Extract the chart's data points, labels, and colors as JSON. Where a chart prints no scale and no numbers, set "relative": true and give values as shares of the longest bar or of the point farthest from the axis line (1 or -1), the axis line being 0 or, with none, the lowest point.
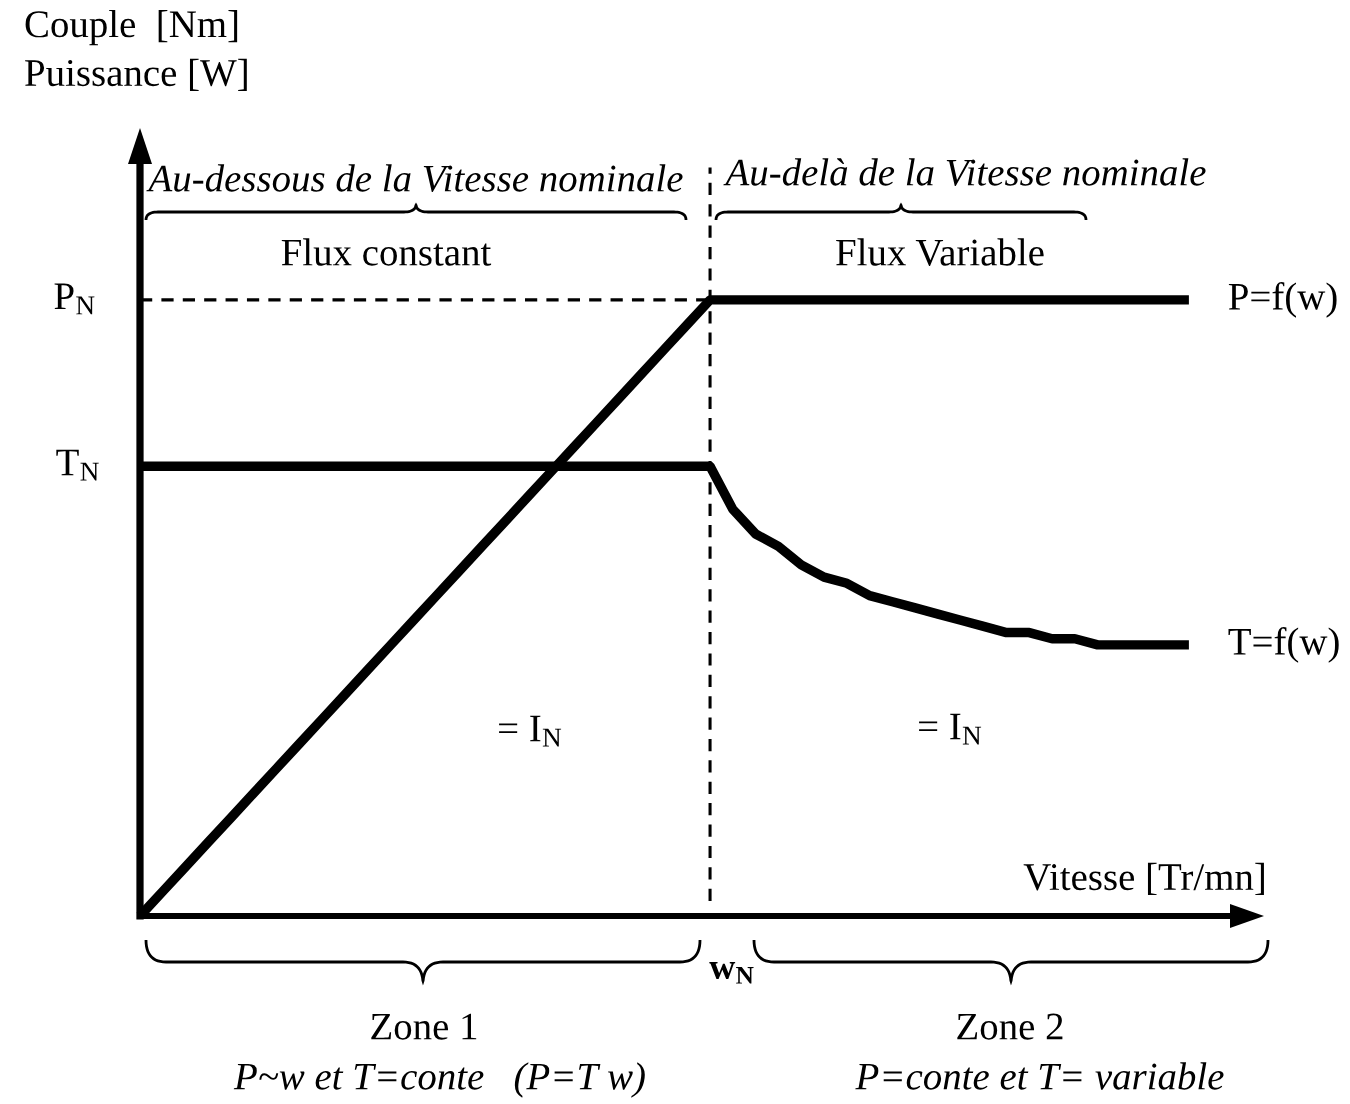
{
  "chart_data": {
    "type": "line",
    "relative": true,
    "xlabel": "Vitesse [Tr/mn]",
    "categories": [
      null,
      null,
      null,
      null,
      null,
      null,
      null,
      null,
      null,
      null,
      null,
      null,
      null,
      null,
      null,
      null,
      null,
      null,
      null,
      null,
      null,
      null,
      null,
      null,
      null,
      null,
      null,
      null,
      null,
      null,
      null,
      null,
      null,
      null,
      null,
      null,
      null,
      null,
      null,
      null,
      null,
      null,
      null,
      null,
      null,
      null,
      null
    ],
    "series": [
      {
        "name": "P=f(w)",
        "color": "#000000",
        "values": [
          0,
          0.04,
          0.08,
          0.12,
          0.16,
          0.2,
          0.24,
          0.28,
          0.32,
          0.36,
          0.4,
          0.44,
          0.48,
          0.52,
          0.56,
          0.6,
          0.64,
          0.68,
          0.72,
          0.76,
          0.8,
          0.84,
          0.88,
          0.92,
          0.96,
          1,
          1,
          1,
          1,
          1,
          1,
          1,
          1,
          1,
          1,
          1,
          1,
          1,
          1,
          1,
          1,
          1,
          1,
          1,
          1,
          1,
          1
        ]
      },
      {
        "name": "T=f(w)",
        "color": "#000000",
        "values": [
          0.73,
          0.73,
          0.73,
          0.73,
          0.73,
          0.73,
          0.73,
          0.73,
          0.73,
          0.73,
          0.73,
          0.73,
          0.73,
          0.73,
          0.73,
          0.73,
          0.73,
          0.73,
          0.73,
          0.73,
          0.73,
          0.73,
          0.73,
          0.73,
          0.73,
          0.73,
          0.66,
          0.62,
          0.6,
          0.57,
          0.55,
          0.54,
          0.52,
          0.51,
          0.5,
          0.49,
          0.48,
          0.47,
          0.46,
          0.46,
          0.45,
          0.45,
          0.44,
          0.44,
          0.44,
          0.44,
          0.44
        ]
      }
    ],
    "ref_lines": [
      {
        "axis": "y",
        "value": 1,
        "label": "P$_{N}$",
        "color": "#000000",
        "line_style": "dashed"
      }
    ],
    "annotations": [
      "Couple  [Nm]\nPuissance [W]",
      "Au-dessous de la Vitesse nominale",
      "Au-delà de la Vitesse nominale",
      "Flux constant",
      "Flux Variable",
      "T$_{N}$",
      "= I$_{N}$",
      "= I$_{N}$",
      "w$_{N}$",
      "Zone 1",
      "P~w et T=conte   (P=T w)",
      "Zone 2",
      "P=conte et T= variable"
    ]
  }
}
